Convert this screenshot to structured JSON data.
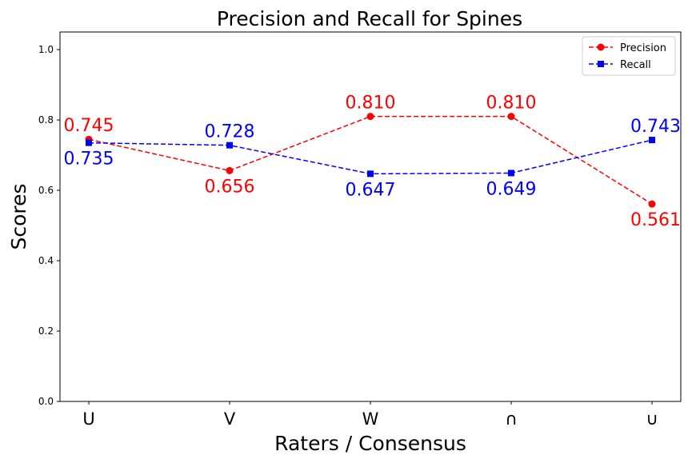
{
  "chart_data": {
    "type": "line",
    "title": "Precision and Recall for Spines",
    "xlabel": "Raters / Consensus",
    "ylabel": "Scores",
    "categories": [
      "U",
      "V",
      "W",
      "∩",
      "∪"
    ],
    "ylim": [
      0,
      1.05
    ],
    "yticks": [
      "0.0",
      "0.2",
      "0.4",
      "0.6",
      "0.8",
      "1.0"
    ],
    "grid": false,
    "legend": "top-right",
    "series": [
      {
        "name": "Precision",
        "color": "#ff0000",
        "marker": "circle",
        "linestyle": "dashed",
        "values": [
          0.745,
          0.656,
          0.81,
          0.81,
          0.561
        ],
        "labels": [
          "0.745",
          "0.656",
          "0.810",
          "0.810",
          "0.561"
        ]
      },
      {
        "name": "Recall",
        "color": "#0000ff",
        "marker": "square",
        "linestyle": "dashed",
        "values": [
          0.735,
          0.728,
          0.647,
          0.649,
          0.743
        ],
        "labels": [
          "0.735",
          "0.728",
          "0.647",
          "0.649",
          "0.743"
        ]
      }
    ]
  }
}
